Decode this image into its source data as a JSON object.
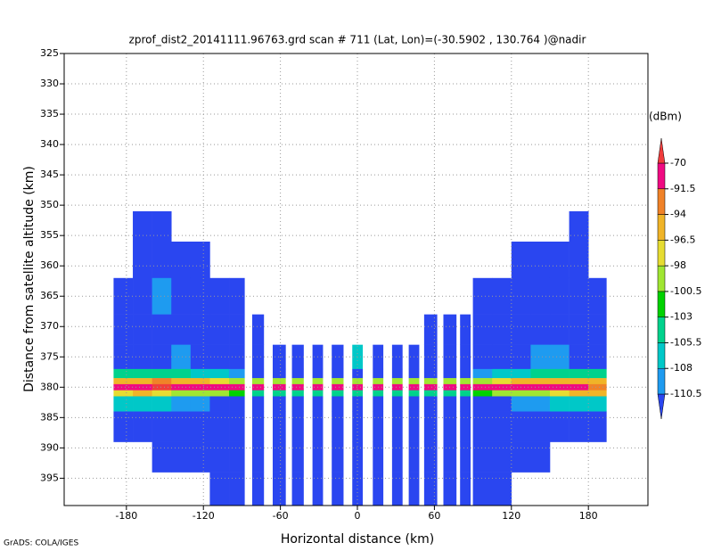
{
  "chart_data": {
    "type": "heatmap",
    "title": "zprof_dist2_20141111.96763.grd  scan # 711  (Lat, Lon)=(-30.5902 , 130.764 )@nadir",
    "xlabel": "Horizontal distance (km)",
    "ylabel": "Distance from satellite altitude (km)",
    "footer": "GrADS: COLA/IGES",
    "colorbar_label": "(dBm)",
    "xlim": [
      -228.5,
      226.4
    ],
    "ylim": [
      325,
      399.5
    ],
    "y_reversed": true,
    "grid": true,
    "xticks": [
      -180,
      -120,
      -60,
      0,
      60,
      120,
      180
    ],
    "yticks": [
      325,
      330,
      335,
      340,
      345,
      350,
      355,
      360,
      365,
      370,
      375,
      380,
      385,
      390,
      395
    ],
    "levels": [
      -110.5,
      -108,
      -105.5,
      -103,
      -100.5,
      -98,
      -96.5,
      -94,
      -91.5,
      -70
    ],
    "colors": [
      "#2a46f0",
      "#1e9bf0",
      "#00c8c8",
      "#00d28c",
      "#00d200",
      "#a0e632",
      "#e6dc32",
      "#f0b428",
      "#f08228",
      "#f00a82",
      "#f03c3c"
    ],
    "y_edges": [
      351,
      356,
      362,
      368,
      373,
      377,
      378.5,
      379.5,
      380.5,
      381.5,
      384,
      389,
      394,
      399.5
    ],
    "columns": [
      {
        "x": [
          -190,
          -175
        ],
        "z": [
          null,
          null,
          -112,
          -112,
          -112,
          -104,
          -95,
          -85,
          -97,
          -106,
          -112,
          null,
          null
        ]
      },
      {
        "x": [
          -175,
          -160
        ],
        "z": [
          -112,
          -112,
          -112,
          -112,
          -112,
          -103,
          -94,
          -84,
          -96,
          -106,
          -112,
          null,
          null
        ]
      },
      {
        "x": [
          -160,
          -145
        ],
        "z": [
          -112,
          -112,
          -109,
          -112,
          -112,
          -104,
          -93,
          -68,
          -97,
          -107,
          -112,
          -112,
          null
        ]
      },
      {
        "x": [
          -145,
          -130
        ],
        "z": [
          null,
          -112,
          -112,
          -112,
          -109,
          -105,
          -95,
          -84,
          -98,
          -108,
          -112,
          -112,
          null
        ]
      },
      {
        "x": [
          -130,
          -115
        ],
        "z": [
          null,
          -112,
          -112,
          -112,
          -112,
          -106,
          -96,
          -85,
          -99,
          -109,
          -112,
          -112,
          null
        ]
      },
      {
        "x": [
          -115,
          -100
        ],
        "z": [
          null,
          null,
          -112,
          -112,
          -112,
          -107,
          -97,
          -86,
          -100,
          -111,
          -112,
          -112,
          -112
        ]
      },
      {
        "x": [
          -100,
          -88
        ],
        "z": [
          null,
          null,
          -112,
          -112,
          -112,
          -109,
          -98,
          -87,
          -101,
          -112,
          -112,
          -112,
          -112
        ]
      },
      {
        "x": [
          -82,
          -73
        ],
        "z": [
          null,
          null,
          null,
          -112,
          -112,
          -112,
          -100,
          -86,
          -104,
          -112,
          -112,
          -112,
          -112
        ]
      },
      {
        "x": [
          -66,
          -56
        ],
        "z": [
          null,
          null,
          null,
          null,
          -112,
          -112,
          -100,
          -86,
          -104,
          -112,
          -112,
          -112,
          -112
        ]
      },
      {
        "x": [
          -51,
          -42
        ],
        "z": [
          null,
          null,
          null,
          null,
          -112,
          -112,
          -100,
          -86,
          -104,
          -112,
          -112,
          -112,
          -112
        ]
      },
      {
        "x": [
          -35,
          -27
        ],
        "z": [
          null,
          null,
          null,
          null,
          -112,
          -112,
          -100,
          -86,
          -104,
          -112,
          -112,
          -112,
          -112
        ]
      },
      {
        "x": [
          -20,
          -11
        ],
        "z": [
          null,
          null,
          null,
          null,
          -112,
          -112,
          -100,
          -86,
          -104,
          -112,
          -112,
          -112,
          -112
        ]
      },
      {
        "x": [
          -4,
          4
        ],
        "z": [
          null,
          null,
          null,
          null,
          -106,
          -112,
          -100,
          -86,
          -104,
          -112,
          -112,
          -112,
          -112
        ]
      },
      {
        "x": [
          12,
          20
        ],
        "z": [
          null,
          null,
          null,
          null,
          -112,
          -112,
          -100,
          -86,
          -104,
          -112,
          -112,
          -112,
          -112
        ]
      },
      {
        "x": [
          27,
          35
        ],
        "z": [
          null,
          null,
          null,
          null,
          -112,
          -112,
          -100,
          -86,
          -104,
          -112,
          -112,
          -112,
          -112
        ]
      },
      {
        "x": [
          40,
          48
        ],
        "z": [
          null,
          null,
          null,
          null,
          -112,
          -112,
          -100,
          -86,
          -104,
          -112,
          -112,
          -112,
          -112
        ]
      },
      {
        "x": [
          52,
          62
        ],
        "z": [
          null,
          null,
          null,
          -112,
          -112,
          -112,
          -100,
          -86,
          -104,
          -112,
          -112,
          -112,
          -112
        ]
      },
      {
        "x": [
          67,
          77
        ],
        "z": [
          null,
          null,
          null,
          -112,
          -112,
          -112,
          -100,
          -86,
          -104,
          -112,
          -112,
          -112,
          -112
        ]
      },
      {
        "x": [
          80,
          88
        ],
        "z": [
          null,
          null,
          null,
          -112,
          -112,
          -112,
          -100,
          -86,
          -104,
          -112,
          -112,
          -112,
          -112
        ]
      },
      {
        "x": [
          90,
          105
        ],
        "z": [
          null,
          null,
          -112,
          -112,
          -112,
          -109,
          -98,
          -87,
          -101,
          -112,
          -112,
          -112,
          -112
        ]
      },
      {
        "x": [
          105,
          120
        ],
        "z": [
          null,
          null,
          -112,
          -112,
          -112,
          -107,
          -97,
          -86,
          -100,
          -111,
          -112,
          -112,
          -112
        ]
      },
      {
        "x": [
          120,
          135
        ],
        "z": [
          null,
          -112,
          -112,
          -112,
          -112,
          -106,
          -96,
          -85,
          -99,
          -109,
          -112,
          -112,
          null
        ]
      },
      {
        "x": [
          135,
          150
        ],
        "z": [
          null,
          -112,
          -112,
          -112,
          -109,
          -105,
          -95,
          -84,
          -98,
          -108,
          -112,
          -112,
          null
        ]
      },
      {
        "x": [
          150,
          165
        ],
        "z": [
          null,
          -112,
          -112,
          -112,
          -109,
          -104,
          -94,
          -85,
          -97,
          -106,
          -112,
          null,
          null
        ]
      },
      {
        "x": [
          165,
          180
        ],
        "z": [
          -112,
          -112,
          -112,
          -112,
          -112,
          -103,
          -94,
          -84,
          -96,
          -106,
          -112,
          null,
          null
        ]
      },
      {
        "x": [
          180,
          194
        ],
        "z": [
          null,
          null,
          -112,
          -112,
          -112,
          -104,
          -94,
          -92,
          -95,
          -106,
          -112,
          null,
          null
        ]
      }
    ]
  }
}
